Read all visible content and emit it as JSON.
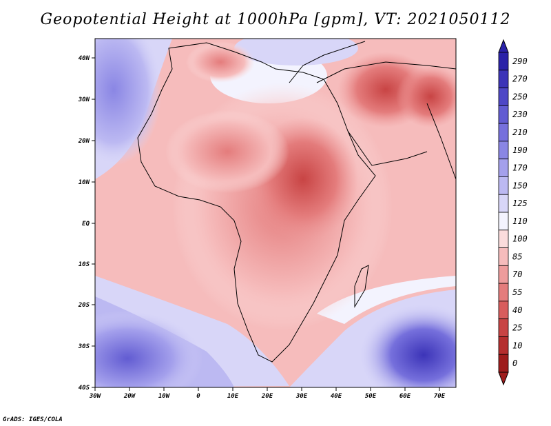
{
  "title": "Geopotential Height at 1000hPa [gpm], VT: 2021050112",
  "credit": "GrADS: IGES/COLA",
  "map": {
    "lon_labels": [
      "30W",
      "20W",
      "10W",
      "0",
      "10E",
      "20E",
      "30E",
      "40E",
      "50E",
      "60E",
      "70E"
    ],
    "lat_labels": [
      "40N",
      "30N",
      "20N",
      "10N",
      "EQ",
      "10S",
      "20S",
      "30S",
      "40S"
    ]
  },
  "colorbar": {
    "labels": [
      "290",
      "270",
      "250",
      "230",
      "210",
      "190",
      "170",
      "150",
      "125",
      "110",
      "100",
      "85",
      "70",
      "55",
      "40",
      "25",
      "10",
      "0"
    ],
    "colors": [
      "#2a22a8",
      "#3c34b8",
      "#4e47c6",
      "#625cd2",
      "#7670dc",
      "#8a86e4",
      "#a4a0ec",
      "#bcb9f2",
      "#d8d6f8",
      "#f3f3fe",
      "#fbdcdc",
      "#f6bcbc",
      "#ee9c9c",
      "#e47c7c",
      "#d85d5d",
      "#c84444",
      "#b52e2e",
      "#9e1c1c"
    ]
  }
}
